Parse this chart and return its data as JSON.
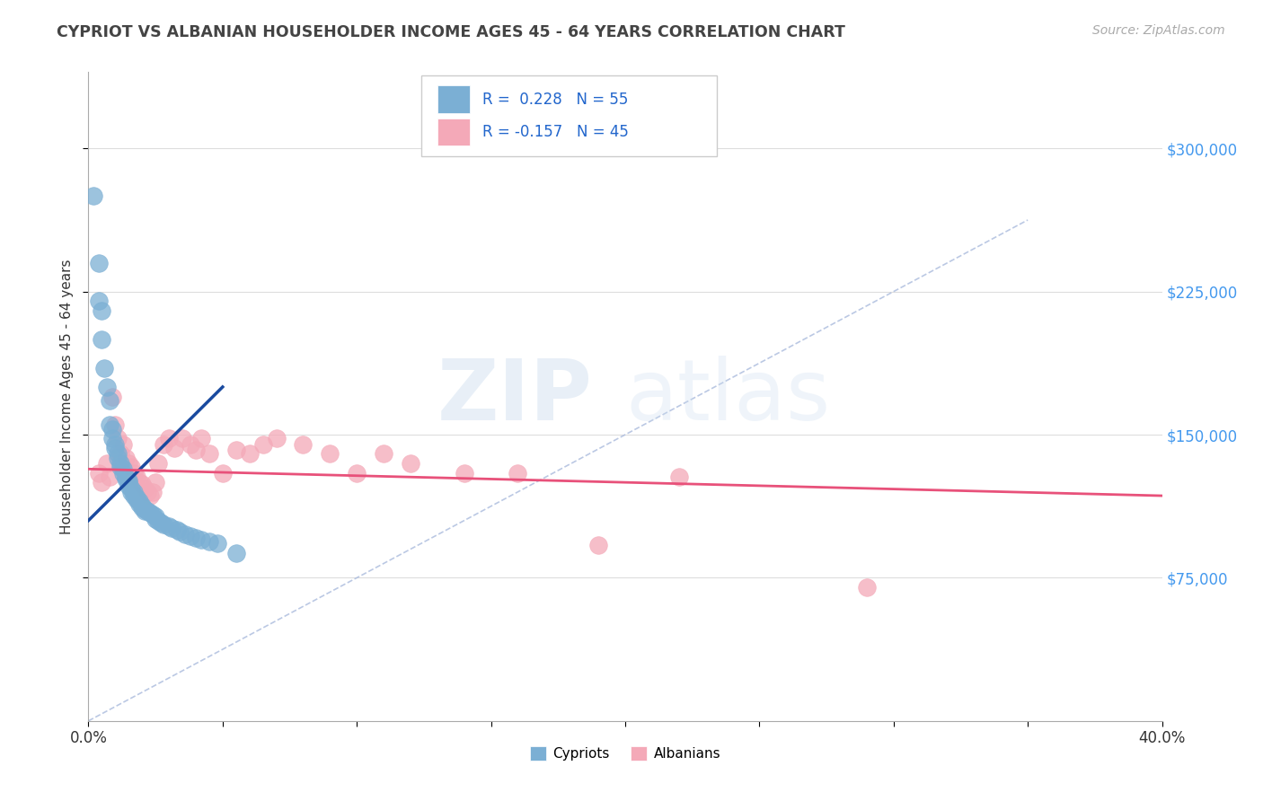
{
  "title": "CYPRIOT VS ALBANIAN HOUSEHOLDER INCOME AGES 45 - 64 YEARS CORRELATION CHART",
  "source": "Source: ZipAtlas.com",
  "ylabel": "Householder Income Ages 45 - 64 years",
  "xlim": [
    0.0,
    0.4
  ],
  "ylim": [
    0,
    340000
  ],
  "yticks": [
    75000,
    150000,
    225000,
    300000
  ],
  "yticklabels": [
    "$75,000",
    "$150,000",
    "$225,000",
    "$300,000"
  ],
  "watermark_zip": "ZIP",
  "watermark_atlas": "atlas",
  "cypriot_color": "#7BAFD4",
  "albanian_color": "#F4A9B8",
  "cypriot_line_color": "#1A4A9F",
  "albanian_line_color": "#E8517A",
  "diagonal_color": "#AABBDD",
  "cypriot_scatter_x": [
    0.002,
    0.004,
    0.004,
    0.005,
    0.005,
    0.006,
    0.007,
    0.008,
    0.008,
    0.009,
    0.009,
    0.01,
    0.01,
    0.011,
    0.011,
    0.012,
    0.012,
    0.013,
    0.013,
    0.014,
    0.014,
    0.015,
    0.015,
    0.015,
    0.016,
    0.016,
    0.017,
    0.017,
    0.018,
    0.018,
    0.019,
    0.019,
    0.02,
    0.02,
    0.021,
    0.021,
    0.022,
    0.023,
    0.024,
    0.025,
    0.025,
    0.026,
    0.027,
    0.028,
    0.03,
    0.031,
    0.033,
    0.034,
    0.036,
    0.038,
    0.04,
    0.042,
    0.045,
    0.048,
    0.055
  ],
  "cypriot_scatter_y": [
    275000,
    240000,
    220000,
    215000,
    200000,
    185000,
    175000,
    168000,
    155000,
    153000,
    148000,
    145000,
    143000,
    140000,
    138000,
    135000,
    133000,
    132000,
    130000,
    128000,
    127000,
    126000,
    125000,
    123000,
    122000,
    120000,
    120000,
    118000,
    117000,
    116000,
    115000,
    114000,
    113000,
    112000,
    111000,
    110000,
    110000,
    109000,
    108000,
    107000,
    106000,
    105000,
    104000,
    103000,
    102000,
    101000,
    100000,
    99000,
    98000,
    97000,
    96000,
    95000,
    94000,
    93000,
    88000
  ],
  "albanian_scatter_x": [
    0.004,
    0.005,
    0.007,
    0.008,
    0.009,
    0.01,
    0.011,
    0.012,
    0.013,
    0.014,
    0.015,
    0.016,
    0.017,
    0.018,
    0.019,
    0.02,
    0.021,
    0.022,
    0.023,
    0.024,
    0.025,
    0.026,
    0.028,
    0.03,
    0.032,
    0.035,
    0.038,
    0.04,
    0.042,
    0.045,
    0.05,
    0.055,
    0.06,
    0.065,
    0.07,
    0.08,
    0.09,
    0.1,
    0.11,
    0.12,
    0.14,
    0.16,
    0.19,
    0.22,
    0.29
  ],
  "albanian_scatter_y": [
    130000,
    125000,
    135000,
    128000,
    170000,
    155000,
    148000,
    140000,
    145000,
    138000,
    135000,
    133000,
    130000,
    128000,
    125000,
    124000,
    122000,
    120000,
    118000,
    120000,
    125000,
    135000,
    145000,
    148000,
    143000,
    148000,
    145000,
    142000,
    148000,
    140000,
    130000,
    142000,
    140000,
    145000,
    148000,
    145000,
    140000,
    130000,
    140000,
    135000,
    130000,
    130000,
    92000,
    128000,
    70000
  ],
  "background_color": "#FFFFFF"
}
